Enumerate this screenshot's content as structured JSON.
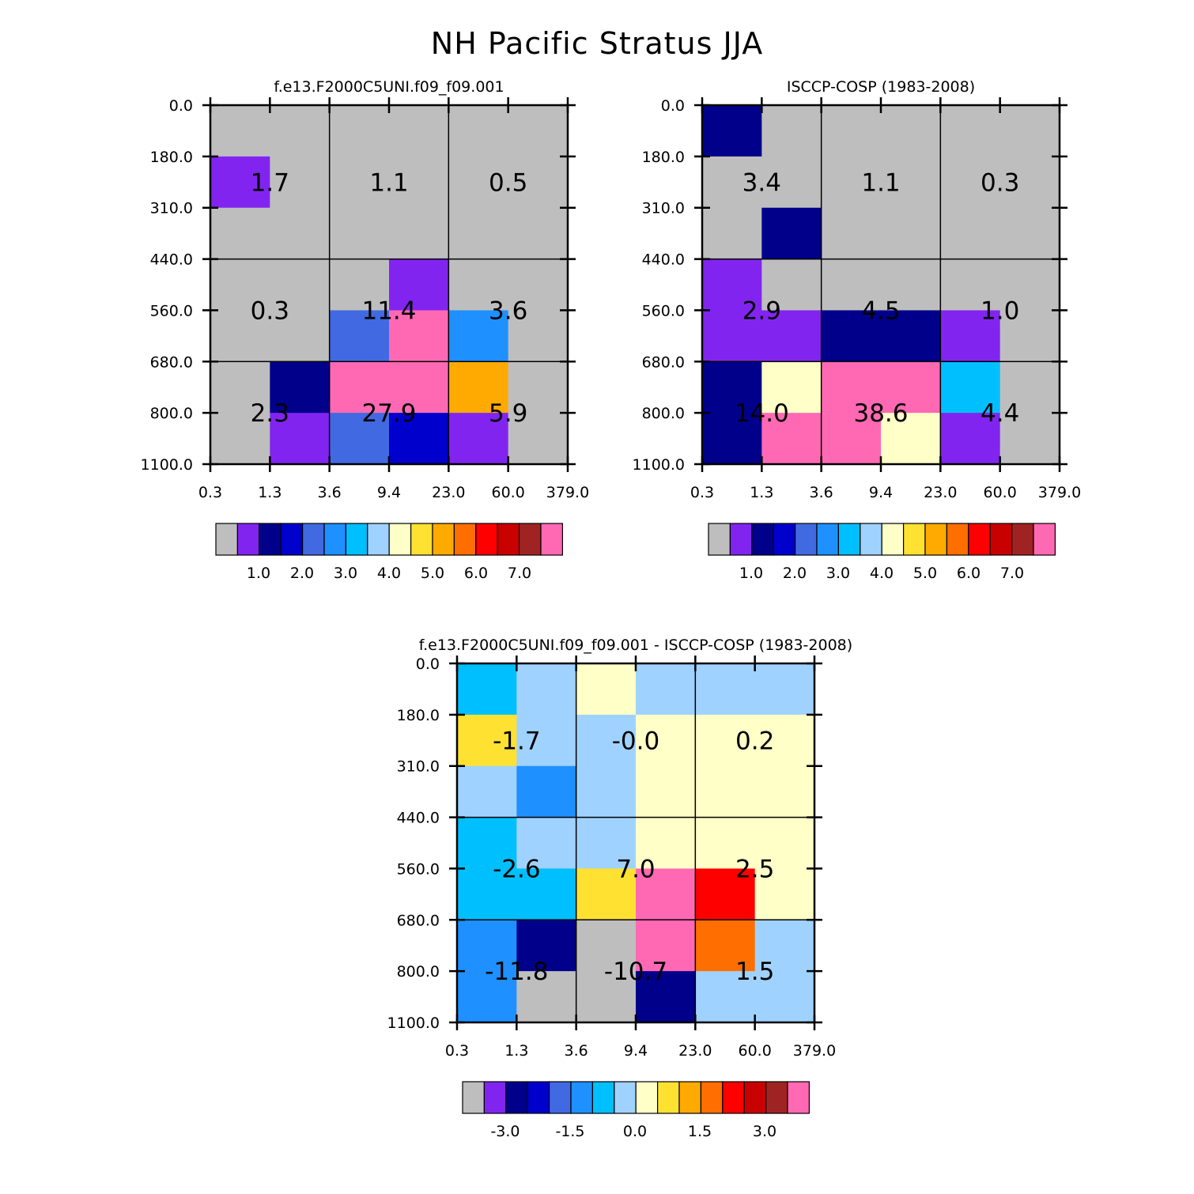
{
  "figure": {
    "title": "NH Pacific Stratus JJA"
  },
  "palette": [
    "#bebebe",
    "#8224f0",
    "#00008b",
    "#0000cd",
    "#4169e1",
    "#1e90ff",
    "#00bfff",
    "#a0d2ff",
    "#ffffc8",
    "#ffe132",
    "#ffaa00",
    "#ff6e00",
    "#ff0000",
    "#c80000",
    "#a02323",
    "#ff69b4"
  ],
  "chart_data": [
    {
      "type": "heatmap",
      "title": "f.e13.F2000C5UNI.f09_f09.001",
      "x_ticks": [
        "0.3",
        "1.3",
        "3.6",
        "9.4",
        "23.0",
        "60.0",
        "379.0"
      ],
      "y_ticks": [
        "0.0",
        "180.0",
        "310.0",
        "440.0",
        "560.0",
        "680.0",
        "800.0",
        "1100.0"
      ],
      "cell_colors": [
        [
          0,
          0,
          0,
          0,
          0,
          0
        ],
        [
          1,
          0,
          0,
          0,
          0,
          0
        ],
        [
          0,
          0,
          0,
          0,
          0,
          0
        ],
        [
          0,
          0,
          0,
          1,
          0,
          0
        ],
        [
          0,
          0,
          4,
          15,
          5,
          0
        ],
        [
          0,
          2,
          15,
          15,
          10,
          0
        ],
        [
          0,
          1,
          4,
          3,
          1,
          0
        ]
      ],
      "block_labels": [
        [
          "1.7",
          "1.1",
          "0.5"
        ],
        [
          "0.3",
          "11.4",
          "3.6"
        ],
        [
          "2.3",
          "27.9",
          "5.9"
        ]
      ],
      "colorbar": {
        "labels": [
          "1.0",
          "2.0",
          "3.0",
          "4.0",
          "5.0",
          "6.0",
          "7.0"
        ]
      }
    },
    {
      "type": "heatmap",
      "title": "ISCCP-COSP (1983-2008)",
      "x_ticks": [
        "0.3",
        "1.3",
        "3.6",
        "9.4",
        "23.0",
        "60.0",
        "379.0"
      ],
      "y_ticks": [
        "0.0",
        "180.0",
        "310.0",
        "440.0",
        "560.0",
        "680.0",
        "800.0",
        "1100.0"
      ],
      "cell_colors": [
        [
          2,
          0,
          0,
          0,
          0,
          0
        ],
        [
          0,
          0,
          0,
          0,
          0,
          0
        ],
        [
          0,
          2,
          0,
          0,
          0,
          0
        ],
        [
          1,
          0,
          0,
          0,
          0,
          0
        ],
        [
          1,
          1,
          2,
          2,
          1,
          0
        ],
        [
          2,
          8,
          15,
          15,
          6,
          0
        ],
        [
          2,
          15,
          15,
          8,
          1,
          0
        ]
      ],
      "block_labels": [
        [
          "3.4",
          "1.1",
          "0.3"
        ],
        [
          "2.9",
          "4.5",
          "1.0"
        ],
        [
          "14.0",
          "38.6",
          "4.4"
        ]
      ],
      "colorbar": {
        "labels": [
          "1.0",
          "2.0",
          "3.0",
          "4.0",
          "5.0",
          "6.0",
          "7.0"
        ]
      }
    },
    {
      "type": "heatmap",
      "title": "f.e13.F2000C5UNI.f09_f09.001 - ISCCP-COSP (1983-2008)",
      "x_ticks": [
        "0.3",
        "1.3",
        "3.6",
        "9.4",
        "23.0",
        "60.0",
        "379.0"
      ],
      "y_ticks": [
        "0.0",
        "180.0",
        "310.0",
        "440.0",
        "560.0",
        "680.0",
        "800.0",
        "1100.0"
      ],
      "cell_colors": [
        [
          6,
          7,
          8,
          7,
          7,
          7
        ],
        [
          9,
          7,
          7,
          8,
          8,
          8
        ],
        [
          7,
          5,
          7,
          8,
          8,
          8
        ],
        [
          6,
          7,
          7,
          8,
          8,
          8
        ],
        [
          6,
          6,
          9,
          15,
          12,
          8
        ],
        [
          5,
          2,
          0,
          15,
          11,
          7
        ],
        [
          5,
          0,
          0,
          2,
          7,
          7
        ]
      ],
      "block_labels": [
        [
          "-1.7",
          "-0.0",
          "0.2"
        ],
        [
          "-2.6",
          "7.0",
          "2.5"
        ],
        [
          "-11.8",
          "-10.7",
          "1.5"
        ]
      ],
      "colorbar": {
        "labels": [
          "-3.0",
          "-1.5",
          "0.0",
          "1.5",
          "3.0"
        ]
      }
    }
  ]
}
